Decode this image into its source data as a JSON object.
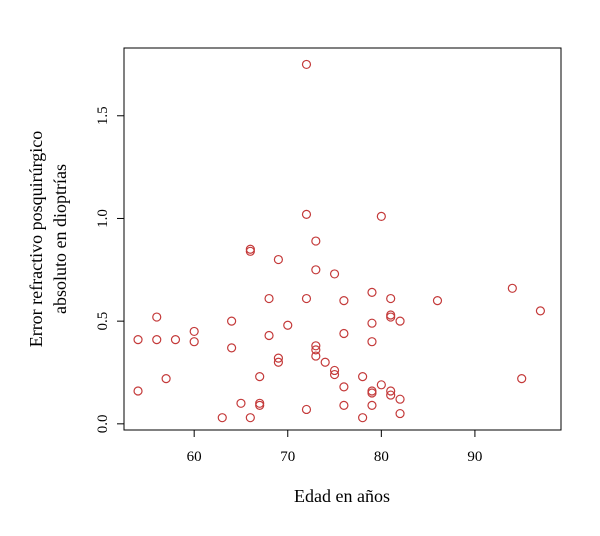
{
  "chart_data": {
    "type": "scatter",
    "title": "",
    "xlabel": "Edad en años",
    "ylabel_lines": [
      "Error refractivo posquirúrgico",
      "absoluto en dioptrías"
    ],
    "xlim": [
      52.5,
      99.2
    ],
    "ylim": [
      -0.03,
      1.83
    ],
    "xticks": [
      60,
      70,
      80,
      90
    ],
    "yticks": [
      0.0,
      0.5,
      1.0,
      1.5
    ],
    "ytick_labels": [
      "0.0",
      "0.5",
      "1.0",
      "1.5"
    ],
    "grid": false,
    "color": "#c43a3a",
    "points": [
      {
        "x": 54,
        "y": 0.41
      },
      {
        "x": 54,
        "y": 0.16
      },
      {
        "x": 56,
        "y": 0.52
      },
      {
        "x": 56,
        "y": 0.41
      },
      {
        "x": 57,
        "y": 0.22
      },
      {
        "x": 58,
        "y": 0.41
      },
      {
        "x": 60,
        "y": 0.45
      },
      {
        "x": 60,
        "y": 0.4
      },
      {
        "x": 63,
        "y": 0.03
      },
      {
        "x": 64,
        "y": 0.5
      },
      {
        "x": 64,
        "y": 0.37
      },
      {
        "x": 65,
        "y": 0.1
      },
      {
        "x": 66,
        "y": 0.85
      },
      {
        "x": 66,
        "y": 0.84
      },
      {
        "x": 66,
        "y": 0.03
      },
      {
        "x": 67,
        "y": 0.23
      },
      {
        "x": 67,
        "y": 0.1
      },
      {
        "x": 67,
        "y": 0.09
      },
      {
        "x": 68,
        "y": 0.61
      },
      {
        "x": 68,
        "y": 0.43
      },
      {
        "x": 69,
        "y": 0.8
      },
      {
        "x": 69,
        "y": 0.32
      },
      {
        "x": 69,
        "y": 0.3
      },
      {
        "x": 70,
        "y": 0.48
      },
      {
        "x": 72,
        "y": 1.75
      },
      {
        "x": 72,
        "y": 1.02
      },
      {
        "x": 72,
        "y": 0.61
      },
      {
        "x": 72,
        "y": 0.07
      },
      {
        "x": 73,
        "y": 0.89
      },
      {
        "x": 73,
        "y": 0.75
      },
      {
        "x": 73,
        "y": 0.38
      },
      {
        "x": 73,
        "y": 0.36
      },
      {
        "x": 73,
        "y": 0.33
      },
      {
        "x": 74,
        "y": 0.3
      },
      {
        "x": 75,
        "y": 0.73
      },
      {
        "x": 75,
        "y": 0.26
      },
      {
        "x": 75,
        "y": 0.24
      },
      {
        "x": 76,
        "y": 0.6
      },
      {
        "x": 76,
        "y": 0.44
      },
      {
        "x": 76,
        "y": 0.18
      },
      {
        "x": 76,
        "y": 0.09
      },
      {
        "x": 78,
        "y": 0.23
      },
      {
        "x": 78,
        "y": 0.03
      },
      {
        "x": 79,
        "y": 0.64
      },
      {
        "x": 79,
        "y": 0.49
      },
      {
        "x": 79,
        "y": 0.4
      },
      {
        "x": 79,
        "y": 0.16
      },
      {
        "x": 79,
        "y": 0.15
      },
      {
        "x": 79,
        "y": 0.09
      },
      {
        "x": 80,
        "y": 1.01
      },
      {
        "x": 80,
        "y": 0.19
      },
      {
        "x": 81,
        "y": 0.61
      },
      {
        "x": 81,
        "y": 0.53
      },
      {
        "x": 81,
        "y": 0.52
      },
      {
        "x": 81,
        "y": 0.16
      },
      {
        "x": 81,
        "y": 0.14
      },
      {
        "x": 82,
        "y": 0.5
      },
      {
        "x": 82,
        "y": 0.12
      },
      {
        "x": 82,
        "y": 0.05
      },
      {
        "x": 86,
        "y": 0.6
      },
      {
        "x": 94,
        "y": 0.66
      },
      {
        "x": 95,
        "y": 0.22
      },
      {
        "x": 97,
        "y": 0.55
      }
    ]
  }
}
